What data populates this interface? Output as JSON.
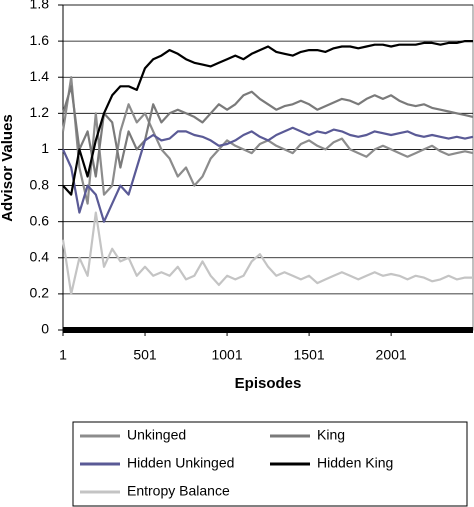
{
  "chart_data": {
    "type": "line",
    "xlabel": "Episodes",
    "ylabel": "Advisor Values",
    "x": [
      1,
      51,
      101,
      151,
      201,
      251,
      301,
      351,
      401,
      451,
      501,
      551,
      601,
      651,
      701,
      751,
      801,
      851,
      901,
      951,
      1001,
      1051,
      1101,
      1151,
      1201,
      1251,
      1301,
      1351,
      1401,
      1451,
      1501,
      1551,
      1601,
      1651,
      1701,
      1751,
      1801,
      1851,
      1901,
      1951,
      2001,
      2051,
      2101,
      2151,
      2201,
      2251,
      2301,
      2351,
      2401,
      2451,
      2500
    ],
    "xlim": [
      1,
      2500
    ],
    "xticks": [
      1,
      501,
      1001,
      1501,
      2001
    ],
    "ylim": [
      0,
      1.8
    ],
    "yticks": [
      0,
      0.2,
      0.4,
      0.6,
      0.8,
      1,
      1.2,
      1.4,
      1.6,
      1.8
    ],
    "grid": true,
    "legend": "bottom",
    "series": [
      {
        "name": "Unkinged",
        "color": "#8c8c8c",
        "values": [
          1.1,
          1.4,
          0.9,
          0.7,
          1.2,
          0.75,
          0.8,
          1.1,
          1.25,
          1.15,
          1.2,
          1.1,
          1.0,
          0.95,
          0.85,
          0.9,
          0.8,
          0.85,
          0.95,
          1.0,
          1.05,
          1.02,
          1.0,
          0.98,
          1.03,
          1.05,
          1.02,
          1.0,
          0.98,
          1.03,
          1.05,
          1.02,
          1.0,
          1.04,
          1.06,
          1.0,
          0.98,
          0.96,
          1.0,
          1.02,
          1.0,
          0.98,
          0.96,
          0.98,
          1.0,
          1.02,
          0.99,
          0.97,
          0.98,
          0.99,
          0.98
        ]
      },
      {
        "name": "King",
        "color": "#7a7a7a",
        "values": [
          1.2,
          1.35,
          1.0,
          1.1,
          0.85,
          1.2,
          1.15,
          0.9,
          1.1,
          1.0,
          1.05,
          1.25,
          1.15,
          1.2,
          1.22,
          1.2,
          1.18,
          1.15,
          1.2,
          1.25,
          1.22,
          1.25,
          1.3,
          1.32,
          1.28,
          1.25,
          1.22,
          1.24,
          1.25,
          1.27,
          1.25,
          1.22,
          1.24,
          1.26,
          1.28,
          1.27,
          1.25,
          1.28,
          1.3,
          1.28,
          1.3,
          1.27,
          1.25,
          1.24,
          1.25,
          1.23,
          1.22,
          1.21,
          1.2,
          1.19,
          1.18
        ]
      },
      {
        "name": "Hidden Unkinged",
        "color": "#5a5a96",
        "values": [
          1.0,
          0.9,
          0.65,
          0.8,
          0.75,
          0.6,
          0.7,
          0.8,
          0.75,
          0.9,
          1.05,
          1.08,
          1.05,
          1.06,
          1.1,
          1.1,
          1.08,
          1.07,
          1.05,
          1.02,
          1.03,
          1.05,
          1.08,
          1.1,
          1.07,
          1.05,
          1.08,
          1.1,
          1.12,
          1.1,
          1.08,
          1.1,
          1.09,
          1.11,
          1.1,
          1.08,
          1.07,
          1.08,
          1.1,
          1.09,
          1.08,
          1.09,
          1.1,
          1.08,
          1.07,
          1.08,
          1.07,
          1.06,
          1.07,
          1.06,
          1.07
        ]
      },
      {
        "name": "Hidden King",
        "color": "#000000",
        "values": [
          0.8,
          0.75,
          1.0,
          0.85,
          1.05,
          1.2,
          1.3,
          1.35,
          1.35,
          1.33,
          1.45,
          1.5,
          1.52,
          1.55,
          1.53,
          1.5,
          1.48,
          1.47,
          1.46,
          1.48,
          1.5,
          1.52,
          1.5,
          1.53,
          1.55,
          1.57,
          1.54,
          1.53,
          1.52,
          1.54,
          1.55,
          1.55,
          1.54,
          1.56,
          1.57,
          1.57,
          1.56,
          1.57,
          1.58,
          1.58,
          1.57,
          1.58,
          1.58,
          1.58,
          1.59,
          1.59,
          1.58,
          1.59,
          1.59,
          1.6,
          1.6
        ]
      },
      {
        "name": "Entropy Balance",
        "color": "#c4c4c4",
        "values": [
          0.5,
          0.2,
          0.4,
          0.3,
          0.65,
          0.35,
          0.45,
          0.38,
          0.4,
          0.3,
          0.35,
          0.3,
          0.32,
          0.3,
          0.35,
          0.28,
          0.3,
          0.38,
          0.3,
          0.25,
          0.3,
          0.28,
          0.3,
          0.38,
          0.42,
          0.35,
          0.3,
          0.32,
          0.3,
          0.28,
          0.3,
          0.26,
          0.28,
          0.3,
          0.32,
          0.3,
          0.28,
          0.3,
          0.32,
          0.3,
          0.31,
          0.3,
          0.28,
          0.3,
          0.29,
          0.27,
          0.28,
          0.3,
          0.28,
          0.29,
          0.29
        ]
      }
    ]
  }
}
